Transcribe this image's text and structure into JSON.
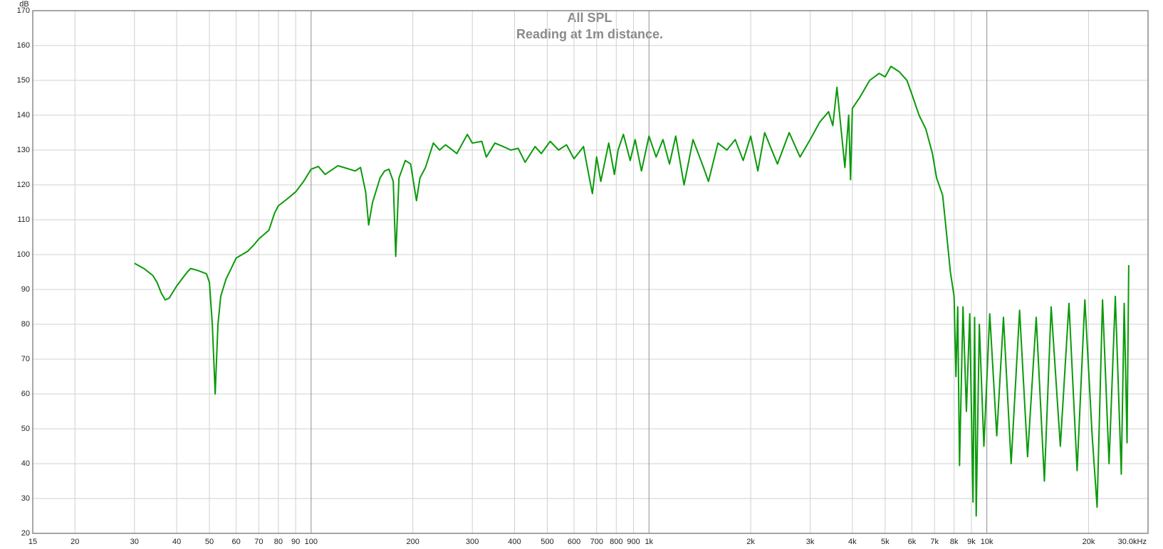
{
  "chart_data": {
    "type": "line",
    "title": "All SPL",
    "subtitle": "Reading at 1m distance.",
    "y_label": "dB",
    "x_scale": "log",
    "grid": true,
    "xlim": [
      15,
      30000
    ],
    "ylim": [
      20,
      170
    ],
    "yticks": [
      20,
      30,
      40,
      50,
      60,
      70,
      80,
      90,
      100,
      110,
      120,
      130,
      140,
      150,
      160,
      170
    ],
    "xticks": [
      15,
      20,
      30,
      40,
      50,
      60,
      70,
      80,
      90,
      100,
      200,
      300,
      400,
      500,
      600,
      700,
      800,
      900,
      {
        "value": 1000,
        "label": "1k"
      },
      {
        "value": 2000,
        "label": "2k"
      },
      {
        "value": 3000,
        "label": "3k"
      },
      {
        "value": 4000,
        "label": "4k"
      },
      {
        "value": 5000,
        "label": "5k"
      },
      {
        "value": 6000,
        "label": "6k"
      },
      {
        "value": 7000,
        "label": "7k"
      },
      {
        "value": 8000,
        "label": "8k"
      },
      {
        "value": 9000,
        "label": "9k"
      },
      {
        "value": 10000,
        "label": "10k"
      },
      {
        "value": 20000,
        "label": "20k"
      },
      {
        "value": 30000,
        "label": "30.0kHz"
      }
    ],
    "x": [
      30,
      32,
      34,
      35,
      36,
      37,
      38,
      40,
      43,
      44,
      46,
      49,
      50,
      51,
      52,
      53,
      54,
      56,
      58,
      60,
      65,
      68,
      70,
      75,
      78,
      80,
      85,
      90,
      95,
      100,
      105,
      110,
      120,
      125,
      135,
      140,
      145,
      148,
      152,
      160,
      165,
      170,
      175,
      178,
      182,
      190,
      197,
      205,
      210,
      218,
      230,
      240,
      250,
      270,
      290,
      300,
      320,
      330,
      350,
      370,
      390,
      410,
      430,
      460,
      480,
      510,
      540,
      570,
      600,
      640,
      660,
      680,
      700,
      720,
      760,
      790,
      810,
      840,
      880,
      910,
      950,
      1000,
      1050,
      1100,
      1150,
      1200,
      1270,
      1350,
      1450,
      1500,
      1600,
      1700,
      1800,
      1900,
      2000,
      2100,
      2200,
      2400,
      2600,
      2800,
      3000,
      3200,
      3400,
      3500,
      3600,
      3800,
      3900,
      3950,
      4000,
      4200,
      4500,
      4800,
      5000,
      5200,
      5500,
      5800,
      6000,
      6300,
      6600,
      6900,
      7100,
      7400,
      7600,
      7800,
      8000,
      8100,
      8200,
      8300,
      8500,
      8700,
      8900,
      9100,
      9200,
      9300,
      9500,
      9800,
      10200,
      10700,
      11200,
      11800,
      12500,
      13200,
      14000,
      14800,
      15500,
      16500,
      17500,
      18500,
      19500,
      20500,
      21200,
      22000,
      23000,
      24000,
      25000,
      25500,
      26000,
      26300
    ],
    "series": [
      {
        "color": "#0a9a0a",
        "values": [
          97.5,
          96,
          94,
          92,
          89,
          87,
          87.5,
          91,
          95,
          96,
          95.5,
          94.5,
          92,
          80,
          60,
          80,
          88,
          93,
          96,
          99,
          101,
          103,
          104.5,
          107,
          112,
          114,
          116,
          118,
          121,
          124.5,
          125.3,
          123,
          125.5,
          125,
          124,
          125,
          118,
          108.5,
          115,
          122,
          124,
          124.5,
          121,
          99.5,
          122,
          127,
          126,
          115.5,
          122,
          125,
          132,
          130,
          131.5,
          129,
          134.5,
          132,
          132.5,
          128,
          132,
          131,
          130,
          130.5,
          126.5,
          131,
          129,
          132.5,
          130,
          131.5,
          127.5,
          131,
          124,
          117.5,
          128,
          121,
          132,
          123,
          130,
          134.5,
          127,
          133,
          124,
          134,
          128,
          133,
          126,
          134,
          120,
          133,
          125,
          121,
          132,
          130,
          133,
          127,
          134,
          124,
          135,
          126,
          135,
          128,
          133,
          138,
          141,
          137,
          148,
          125,
          140,
          121.5,
          142,
          145,
          150,
          152,
          151,
          154,
          152.5,
          150,
          146,
          140,
          136,
          129,
          122,
          117,
          106,
          95,
          88,
          65,
          85,
          39.5,
          85,
          55,
          83,
          29,
          82,
          25,
          80,
          45,
          83,
          48,
          82,
          40,
          84,
          42,
          82,
          35,
          85,
          45,
          86,
          38,
          87,
          48,
          27.5,
          87,
          40,
          88,
          37,
          86,
          46,
          97
        ]
      }
    ]
  }
}
